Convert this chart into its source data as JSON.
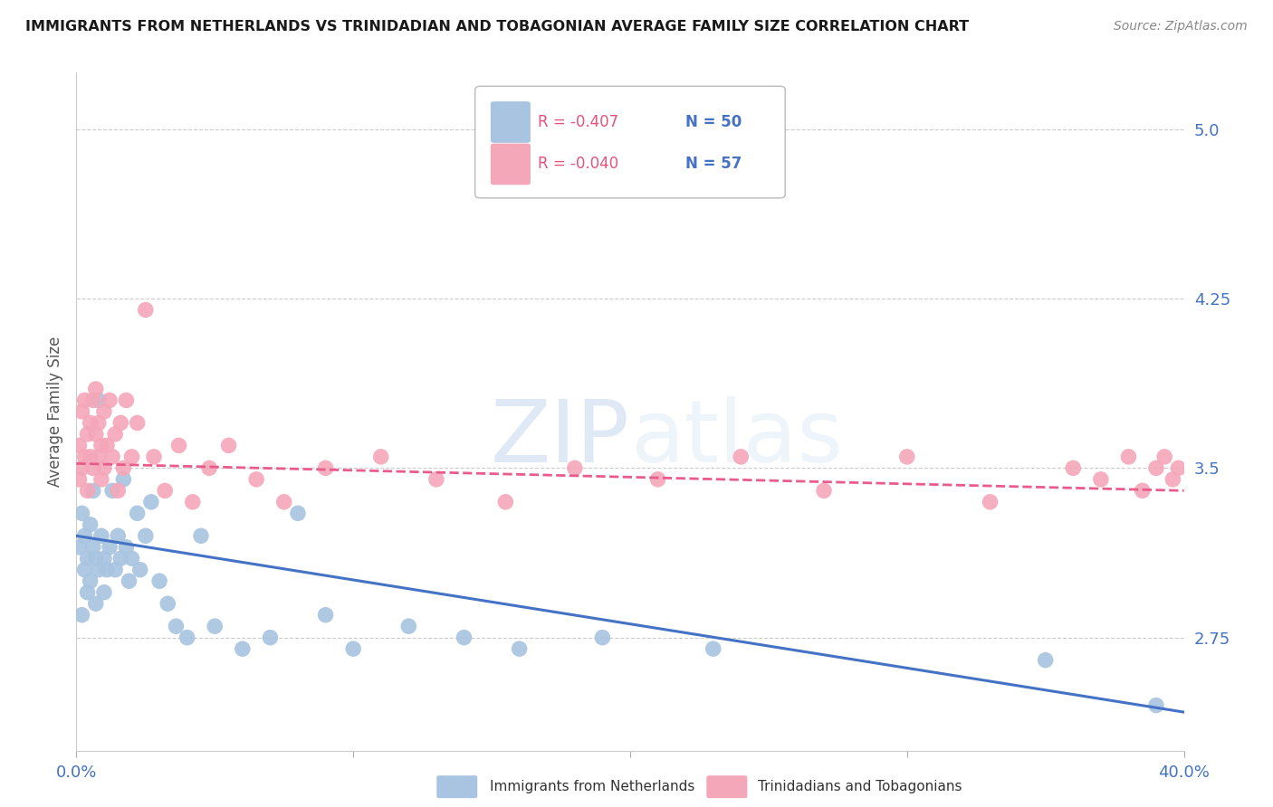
{
  "title": "IMMIGRANTS FROM NETHERLANDS VS TRINIDADIAN AND TOBAGONIAN AVERAGE FAMILY SIZE CORRELATION CHART",
  "source": "Source: ZipAtlas.com",
  "ylabel": "Average Family Size",
  "xlim": [
    0.0,
    0.4
  ],
  "ylim": [
    2.25,
    5.25
  ],
  "yticks": [
    2.75,
    3.5,
    4.25,
    5.0
  ],
  "xticks": [
    0.0,
    0.1,
    0.2,
    0.3,
    0.4
  ],
  "xticklabels": [
    "0.0%",
    "",
    "",
    "",
    "40.0%"
  ],
  "legend_labels": [
    "Immigrants from Netherlands",
    "Trinidadians and Tobagonians"
  ],
  "legend_r_netherlands": "-0.407",
  "legend_n_netherlands": "50",
  "legend_r_trinidadian": "-0.040",
  "legend_n_trinidadian": "57",
  "color_netherlands": "#a8c4e0",
  "color_trinidadian": "#f4a7b9",
  "color_netherlands_line": "#4472c4",
  "color_trinidadian_line": "#e85b8a",
  "background_color": "#ffffff",
  "grid_color": "#cccccc",
  "axis_color": "#4472c4",
  "netherlands_x": [
    0.001,
    0.002,
    0.002,
    0.003,
    0.003,
    0.004,
    0.004,
    0.005,
    0.005,
    0.006,
    0.006,
    0.007,
    0.007,
    0.008,
    0.008,
    0.009,
    0.01,
    0.01,
    0.011,
    0.012,
    0.013,
    0.014,
    0.015,
    0.016,
    0.017,
    0.018,
    0.019,
    0.02,
    0.022,
    0.023,
    0.025,
    0.027,
    0.03,
    0.033,
    0.036,
    0.04,
    0.045,
    0.05,
    0.06,
    0.07,
    0.08,
    0.09,
    0.1,
    0.12,
    0.14,
    0.16,
    0.19,
    0.23,
    0.35,
    0.39
  ],
  "netherlands_y": [
    3.15,
    3.3,
    2.85,
    3.05,
    3.2,
    2.95,
    3.1,
    3.25,
    3.0,
    3.15,
    3.4,
    3.1,
    2.9,
    3.8,
    3.05,
    3.2,
    3.1,
    2.95,
    3.05,
    3.15,
    3.4,
    3.05,
    3.2,
    3.1,
    3.45,
    3.15,
    3.0,
    3.1,
    3.3,
    3.05,
    3.2,
    3.35,
    3.0,
    2.9,
    2.8,
    2.75,
    3.2,
    2.8,
    2.7,
    2.75,
    3.3,
    2.85,
    2.7,
    2.8,
    2.75,
    2.7,
    2.75,
    2.7,
    2.65,
    2.45
  ],
  "trinidadian_x": [
    0.001,
    0.001,
    0.002,
    0.002,
    0.003,
    0.003,
    0.004,
    0.004,
    0.005,
    0.005,
    0.006,
    0.006,
    0.007,
    0.007,
    0.008,
    0.008,
    0.009,
    0.009,
    0.01,
    0.01,
    0.011,
    0.012,
    0.013,
    0.014,
    0.015,
    0.016,
    0.017,
    0.018,
    0.02,
    0.022,
    0.025,
    0.028,
    0.032,
    0.037,
    0.042,
    0.048,
    0.055,
    0.065,
    0.075,
    0.09,
    0.11,
    0.13,
    0.155,
    0.18,
    0.21,
    0.24,
    0.27,
    0.3,
    0.33,
    0.36,
    0.37,
    0.38,
    0.385,
    0.39,
    0.393,
    0.396,
    0.398
  ],
  "trinidadian_y": [
    3.45,
    3.6,
    3.5,
    3.75,
    3.55,
    3.8,
    3.65,
    3.4,
    3.7,
    3.55,
    3.8,
    3.5,
    3.65,
    3.85,
    3.55,
    3.7,
    3.6,
    3.45,
    3.75,
    3.5,
    3.6,
    3.8,
    3.55,
    3.65,
    3.4,
    3.7,
    3.5,
    3.8,
    3.55,
    3.7,
    4.2,
    3.55,
    3.4,
    3.6,
    3.35,
    3.5,
    3.6,
    3.45,
    3.35,
    3.5,
    3.55,
    3.45,
    3.35,
    3.5,
    3.45,
    3.55,
    3.4,
    3.55,
    3.35,
    3.5,
    3.45,
    3.55,
    3.4,
    3.5,
    3.55,
    3.45,
    3.5
  ]
}
